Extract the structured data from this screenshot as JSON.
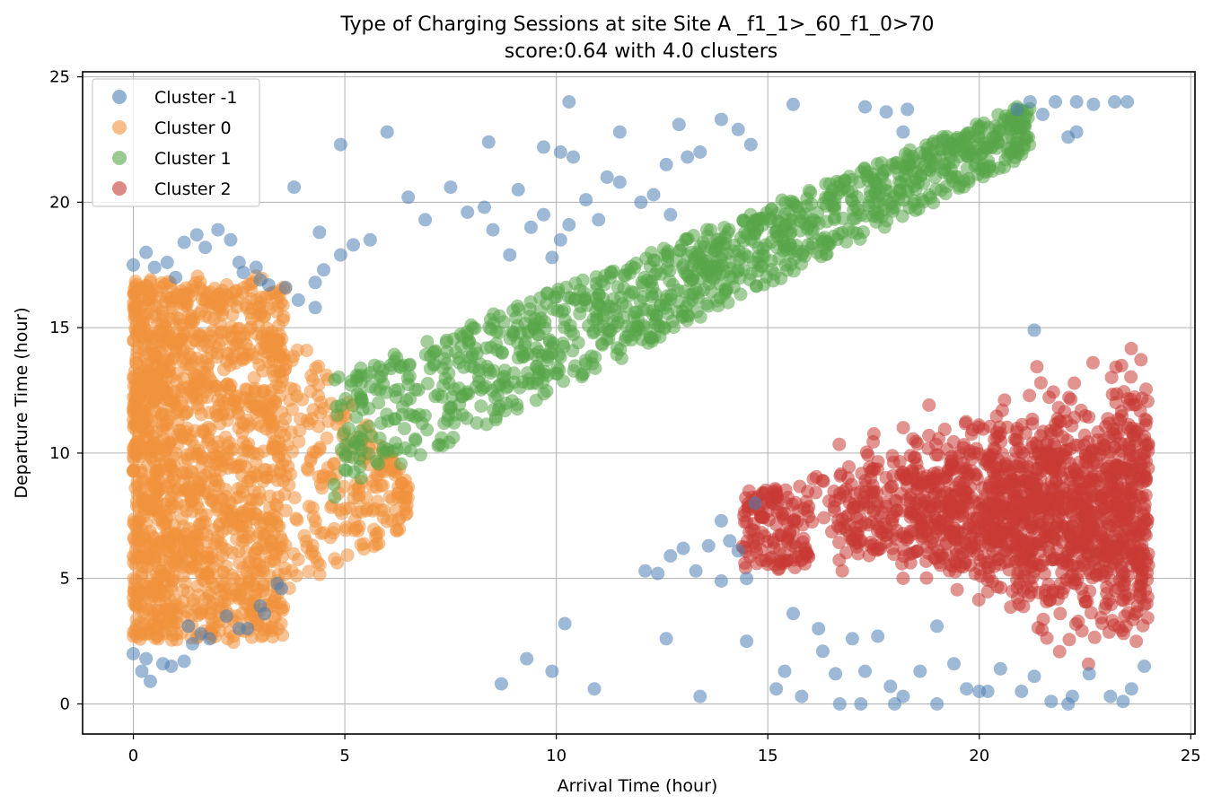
{
  "chart_data": {
    "type": "scatter",
    "title": "Type of Charging Sessions at site Site A   _f1_1>_60_f1_0>70",
    "subtitle": "score:0.64 with 4.0 clusters",
    "xlabel": "Arrival Time (hour)",
    "ylabel": "Departure Time (hour)",
    "xlim": [
      -1.2,
      25.1
    ],
    "ylim": [
      -1.2,
      25.2
    ],
    "xticks": [
      0,
      5,
      10,
      15,
      20,
      25
    ],
    "yticks": [
      0,
      5,
      10,
      15,
      20,
      25
    ],
    "grid": true,
    "legend_position": "top-left",
    "series": [
      {
        "name": "Cluster -1",
        "color": "#4c7fb5",
        "points": [
          [
            0.0,
            17.5
          ],
          [
            0.3,
            18.0
          ],
          [
            0.5,
            17.4
          ],
          [
            0.8,
            17.6
          ],
          [
            1.0,
            17.0
          ],
          [
            1.2,
            18.4
          ],
          [
            1.5,
            18.7
          ],
          [
            1.7,
            18.2
          ],
          [
            2.0,
            18.9
          ],
          [
            2.3,
            18.5
          ],
          [
            2.5,
            17.6
          ],
          [
            2.6,
            17.2
          ],
          [
            2.9,
            17.4
          ],
          [
            3.0,
            16.9
          ],
          [
            3.2,
            16.7
          ],
          [
            3.6,
            16.6
          ],
          [
            3.9,
            16.1
          ],
          [
            4.3,
            15.8
          ],
          [
            4.3,
            16.8
          ],
          [
            4.5,
            17.3
          ],
          [
            4.9,
            17.9
          ],
          [
            5.2,
            18.3
          ],
          [
            5.6,
            18.5
          ],
          [
            4.4,
            18.8
          ],
          [
            3.8,
            20.6
          ],
          [
            4.9,
            22.3
          ],
          [
            6.0,
            22.8
          ],
          [
            6.5,
            20.2
          ],
          [
            6.9,
            19.3
          ],
          [
            7.5,
            20.6
          ],
          [
            7.9,
            19.6
          ],
          [
            8.3,
            19.8
          ],
          [
            8.5,
            18.9
          ],
          [
            8.9,
            17.9
          ],
          [
            9.1,
            20.5
          ],
          [
            9.4,
            19.0
          ],
          [
            9.7,
            19.5
          ],
          [
            9.9,
            17.8
          ],
          [
            10.1,
            18.5
          ],
          [
            10.3,
            19.1
          ],
          [
            10.1,
            22.0
          ],
          [
            10.4,
            21.8
          ],
          [
            9.7,
            22.2
          ],
          [
            10.3,
            24.0
          ],
          [
            10.7,
            20.1
          ],
          [
            11.0,
            19.3
          ],
          [
            11.2,
            21.0
          ],
          [
            11.5,
            20.8
          ],
          [
            11.5,
            22.8
          ],
          [
            12.0,
            20.0
          ],
          [
            12.3,
            20.3
          ],
          [
            12.6,
            21.5
          ],
          [
            12.7,
            19.5
          ],
          [
            12.9,
            23.1
          ],
          [
            13.4,
            22.0
          ],
          [
            13.9,
            23.3
          ],
          [
            14.3,
            22.9
          ],
          [
            8.4,
            22.4
          ],
          [
            13.1,
            21.8
          ],
          [
            14.6,
            22.3
          ],
          [
            15.6,
            23.9
          ],
          [
            17.3,
            23.8
          ],
          [
            17.8,
            23.6
          ],
          [
            18.2,
            22.8
          ],
          [
            18.3,
            23.7
          ],
          [
            20.9,
            23.7
          ],
          [
            21.2,
            24.0
          ],
          [
            21.5,
            23.5
          ],
          [
            21.8,
            24.0
          ],
          [
            22.3,
            24.0
          ],
          [
            22.7,
            23.9
          ],
          [
            23.2,
            24.0
          ],
          [
            23.5,
            24.0
          ],
          [
            22.1,
            22.6
          ],
          [
            22.3,
            22.8
          ],
          [
            21.3,
            14.9
          ],
          [
            0.0,
            2.0
          ],
          [
            0.2,
            1.3
          ],
          [
            0.3,
            1.8
          ],
          [
            0.4,
            0.9
          ],
          [
            0.7,
            1.6
          ],
          [
            0.9,
            1.5
          ],
          [
            1.2,
            1.7
          ],
          [
            1.3,
            3.1
          ],
          [
            1.6,
            2.8
          ],
          [
            1.4,
            2.4
          ],
          [
            1.8,
            2.6
          ],
          [
            2.2,
            3.5
          ],
          [
            2.5,
            3.0
          ],
          [
            2.7,
            3.0
          ],
          [
            3.0,
            3.9
          ],
          [
            3.1,
            3.6
          ],
          [
            3.5,
            4.6
          ],
          [
            3.4,
            4.8
          ],
          [
            8.7,
            0.8
          ],
          [
            9.3,
            1.8
          ],
          [
            9.9,
            1.3
          ],
          [
            10.2,
            3.2
          ],
          [
            10.9,
            0.6
          ],
          [
            12.1,
            5.3
          ],
          [
            12.4,
            5.2
          ],
          [
            12.7,
            5.9
          ],
          [
            13.0,
            6.2
          ],
          [
            13.3,
            5.3
          ],
          [
            13.6,
            6.3
          ],
          [
            13.9,
            7.3
          ],
          [
            14.1,
            6.5
          ],
          [
            14.3,
            6.1
          ],
          [
            14.5,
            5.0
          ],
          [
            14.7,
            8.0
          ],
          [
            13.9,
            4.9
          ],
          [
            12.6,
            2.6
          ],
          [
            13.4,
            0.3
          ],
          [
            14.5,
            2.5
          ],
          [
            15.2,
            0.6
          ],
          [
            15.4,
            1.3
          ],
          [
            15.6,
            3.6
          ],
          [
            15.8,
            0.3
          ],
          [
            16.2,
            3.0
          ],
          [
            16.6,
            1.2
          ],
          [
            17.0,
            2.6
          ],
          [
            17.3,
            1.3
          ],
          [
            17.6,
            2.7
          ],
          [
            17.9,
            0.7
          ],
          [
            18.2,
            0.3
          ],
          [
            18.6,
            1.3
          ],
          [
            19.4,
            1.6
          ],
          [
            19.7,
            0.6
          ],
          [
            20.2,
            0.5
          ],
          [
            20.5,
            1.4
          ],
          [
            21.0,
            0.5
          ],
          [
            21.3,
            1.1
          ],
          [
            21.7,
            0.1
          ],
          [
            22.2,
            0.3
          ],
          [
            22.6,
            1.2
          ],
          [
            23.1,
            0.3
          ],
          [
            23.6,
            0.6
          ],
          [
            23.9,
            1.5
          ],
          [
            16.7,
            0.0
          ],
          [
            17.2,
            0.0
          ],
          [
            18.0,
            0.0
          ],
          [
            19.0,
            0.0
          ],
          [
            20.0,
            0.5
          ],
          [
            22.1,
            0.0
          ],
          [
            23.4,
            0.1
          ],
          [
            16.3,
            2.1
          ],
          [
            19.0,
            3.1
          ]
        ]
      },
      {
        "name": "Cluster 0",
        "color": "#f0913d",
        "region": {
          "type": "box",
          "x": [
            0.0,
            3.6
          ],
          "y": [
            2.2,
            17.3
          ],
          "spread_x": [
            3.6,
            6.5
          ],
          "spread_y": [
            4.4,
            15.5
          ]
        }
      },
      {
        "name": "Cluster 1",
        "color": "#57a549",
        "region": {
          "type": "band",
          "x": [
            4.7,
            21.2
          ],
          "lower_start": 8.0,
          "lower_end": 21.9,
          "upper_start": 13.0,
          "upper_end": 24.0
        }
      },
      {
        "name": "Cluster 2",
        "color": "#c93a35",
        "region": {
          "type": "box",
          "x": [
            14.4,
            24.1
          ],
          "y": [
            0.5,
            16.6
          ],
          "dense_x": [
            16.0,
            24.0
          ],
          "dense_y": [
            4.5,
            11.5
          ]
        }
      }
    ]
  }
}
